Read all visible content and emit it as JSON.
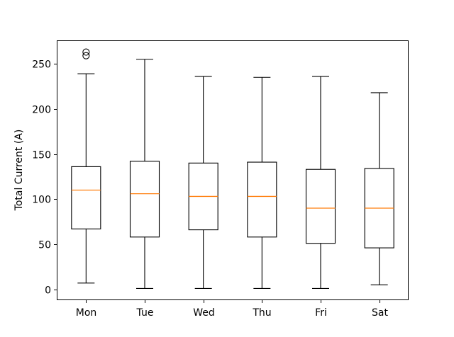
{
  "chart_data": {
    "type": "boxplot",
    "title": "",
    "xlabel": "",
    "ylabel": "Total Current (A)",
    "categories": [
      "Mon",
      "Tue",
      "Wed",
      "Thu",
      "Fri",
      "Sat"
    ],
    "yticks": [
      0,
      50,
      100,
      150,
      200,
      250
    ],
    "ylim": [
      -12,
      276
    ],
    "grid": false,
    "legend": "none",
    "colors": {
      "box": "#000000",
      "whisker": "#000000",
      "median": "#ff7f0e",
      "outlier": "#000000",
      "text": "#000000",
      "background": "#ffffff"
    },
    "series": [
      {
        "category": "Mon",
        "whisker_low": 7,
        "q1": 67,
        "median": 110,
        "q3": 136,
        "whisker_high": 239,
        "outliers": [
          259,
          263
        ]
      },
      {
        "category": "Tue",
        "whisker_low": 1,
        "q1": 58,
        "median": 106,
        "q3": 142,
        "whisker_high": 255,
        "outliers": []
      },
      {
        "category": "Wed",
        "whisker_low": 1,
        "q1": 66,
        "median": 103,
        "q3": 140,
        "whisker_high": 236,
        "outliers": []
      },
      {
        "category": "Thu",
        "whisker_low": 1,
        "q1": 58,
        "median": 103,
        "q3": 141,
        "whisker_high": 235,
        "outliers": []
      },
      {
        "category": "Fri",
        "whisker_low": 1,
        "q1": 51,
        "median": 90,
        "q3": 133,
        "whisker_high": 236,
        "outliers": []
      },
      {
        "category": "Sat",
        "whisker_low": 5,
        "q1": 46,
        "median": 90,
        "q3": 134,
        "whisker_high": 218,
        "outliers": []
      }
    ]
  }
}
